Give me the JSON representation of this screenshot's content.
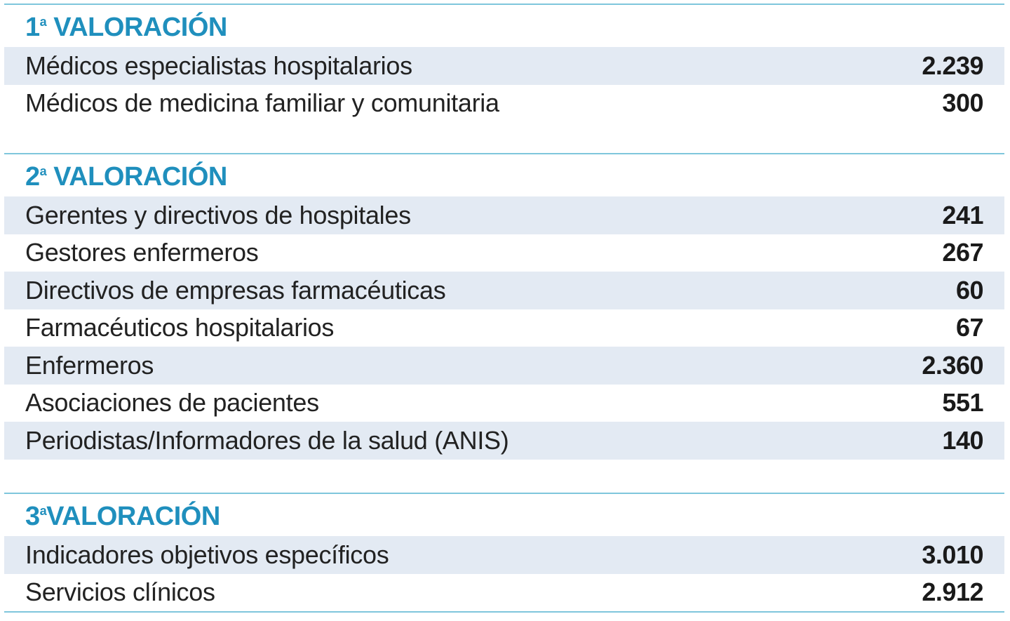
{
  "sections": [
    {
      "number": "1",
      "ordinal": "a",
      "title": "VALORACIÓN",
      "rows": [
        {
          "label": "Médicos especialistas hospitalarios",
          "value": "2.239"
        },
        {
          "label": "Médicos de medicina familiar y comunitaria",
          "value": "300"
        }
      ]
    },
    {
      "number": "2",
      "ordinal": "a",
      "title": "VALORACIÓN",
      "rows": [
        {
          "label": "Gerentes y directivos de hospitales",
          "value": "241"
        },
        {
          "label": "Gestores enfermeros",
          "value": "267"
        },
        {
          "label": "Directivos de empresas farmacéuticas",
          "value": "60"
        },
        {
          "label": "Farmacéuticos hospitalarios",
          "value": "67"
        },
        {
          "label": "Enfermeros",
          "value": "2.360"
        },
        {
          "label": "Asociaciones de pacientes",
          "value": "551"
        },
        {
          "label": "Periodistas/Informadores de la salud (ANIS)",
          "value": "140"
        }
      ]
    },
    {
      "number": "3",
      "ordinal": "a",
      "title": "VALORACIÓN",
      "rows": [
        {
          "label": "Indicadores objetivos específicos",
          "value": "3.010"
        },
        {
          "label": "Servicios clínicos",
          "value": "2.912"
        }
      ]
    }
  ],
  "colors": {
    "heading": "#1f8fbd",
    "rule": "#7fc6dc",
    "shade": "#e3eaf3"
  }
}
